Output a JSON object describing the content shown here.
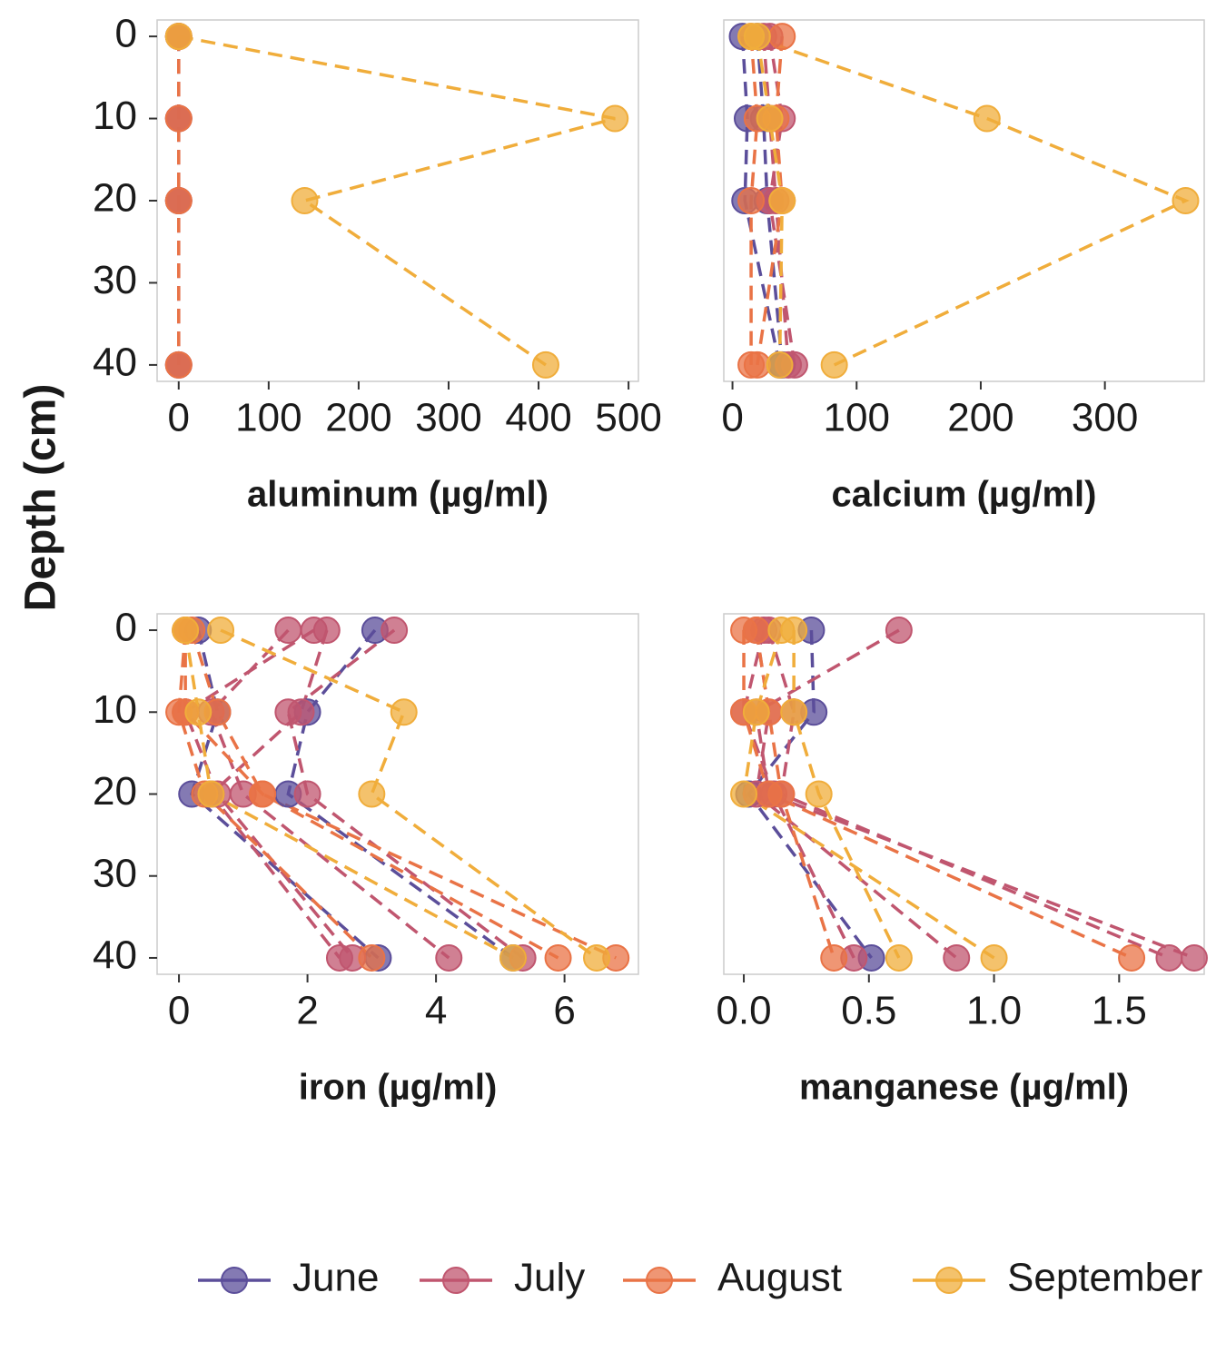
{
  "ylabel": "Depth (cm)",
  "chart_data": [
    {
      "type": "profile",
      "xlabel": "aluminum (µg/ml)",
      "xlim": [
        -24,
        511
      ],
      "xticks": [
        0,
        100,
        200,
        300,
        400,
        500
      ],
      "ylim": [
        -2,
        42
      ],
      "yticks": [
        0,
        10,
        20,
        30,
        40
      ],
      "y_reversed": true,
      "series": [
        {
          "name": "June",
          "color": "#5b4e9a",
          "x": [
            0,
            0,
            0,
            0
          ],
          "values": [
            0,
            10,
            20,
            40
          ]
        },
        {
          "name": "July",
          "color": "#c0566f",
          "x": [
            0,
            0,
            0,
            0
          ],
          "values": [
            0,
            10,
            20,
            40
          ]
        },
        {
          "name": "August",
          "color": "#e97346",
          "x": [
            0,
            0,
            0,
            0
          ],
          "values": [
            0,
            10,
            20,
            40
          ]
        },
        {
          "name": "September",
          "color": "#f0ad3b",
          "x": [
            0,
            485,
            140,
            408
          ],
          "values": [
            0,
            10,
            20,
            40
          ]
        }
      ]
    },
    {
      "type": "profile",
      "xlabel": "calcium (µg/ml)",
      "xlim": [
        -7,
        380
      ],
      "xticks": [
        0,
        100,
        200,
        300
      ],
      "ylim": [
        -2,
        42
      ],
      "y_reversed": true,
      "series": [
        {
          "name": "June",
          "color": "#5b4e9a",
          "x": [
            8,
            12,
            10,
            38
          ],
          "values": [
            0,
            10,
            20,
            40
          ]
        },
        {
          "name": "June",
          "color": "#5b4e9a",
          "x": [
            20,
            25,
            28,
            40
          ],
          "values": [
            0,
            10,
            20,
            40
          ]
        },
        {
          "name": "July",
          "color": "#c0566f",
          "x": [
            30,
            40,
            30,
            50
          ],
          "values": [
            0,
            10,
            20,
            40
          ]
        },
        {
          "name": "July",
          "color": "#c0566f",
          "x": [
            25,
            30,
            35,
            45
          ],
          "values": [
            0,
            10,
            20,
            40
          ]
        },
        {
          "name": "August",
          "color": "#e97346",
          "x": [
            40,
            35,
            40,
            20
          ],
          "values": [
            0,
            10,
            20,
            40
          ]
        },
        {
          "name": "August",
          "color": "#e97346",
          "x": [
            15,
            20,
            15,
            15
          ],
          "values": [
            0,
            10,
            20,
            40
          ]
        },
        {
          "name": "September",
          "color": "#f0ad3b",
          "x": [
            15,
            205,
            365,
            82
          ],
          "values": [
            0,
            10,
            20,
            40
          ]
        },
        {
          "name": "September",
          "color": "#f0ad3b",
          "x": [
            20,
            30,
            40,
            38
          ],
          "values": [
            0,
            10,
            20,
            40
          ]
        }
      ]
    },
    {
      "type": "profile",
      "xlabel": "iron (µg/ml)",
      "xlim": [
        -0.34,
        7.15
      ],
      "xticks": [
        0,
        2,
        4,
        6
      ],
      "ylim": [
        -2,
        42
      ],
      "yticks": [
        0,
        10,
        20,
        30,
        40
      ],
      "y_reversed": true,
      "series": [
        {
          "name": "June",
          "color": "#5b4e9a",
          "x": [
            3.05,
            2.0,
            1.7,
            5.2
          ],
          "values": [
            0,
            10,
            20,
            40
          ]
        },
        {
          "name": "June",
          "color": "#5b4e9a",
          "x": [
            0.3,
            0.6,
            0.2,
            3.1
          ],
          "values": [
            0,
            10,
            20,
            40
          ]
        },
        {
          "name": "July",
          "color": "#c0566f",
          "x": [
            3.35,
            1.7,
            2.0,
            5.35
          ],
          "values": [
            0,
            10,
            20,
            40
          ]
        },
        {
          "name": "July",
          "color": "#c0566f",
          "x": [
            2.3,
            1.9,
            0.5,
            2.5
          ],
          "values": [
            0,
            10,
            20,
            40
          ]
        },
        {
          "name": "July",
          "color": "#c0566f",
          "x": [
            1.7,
            0.5,
            1.0,
            4.2
          ],
          "values": [
            0,
            10,
            20,
            40
          ]
        },
        {
          "name": "July",
          "color": "#c0566f",
          "x": [
            2.1,
            0.1,
            0.6,
            2.7
          ],
          "values": [
            0,
            10,
            20,
            40
          ]
        },
        {
          "name": "August",
          "color": "#e97346",
          "x": [
            0.1,
            0.1,
            1.3,
            5.9
          ],
          "values": [
            0,
            10,
            20,
            40
          ]
        },
        {
          "name": "August",
          "color": "#e97346",
          "x": [
            0.2,
            0.6,
            1.3,
            6.8
          ],
          "values": [
            0,
            10,
            20,
            40
          ]
        },
        {
          "name": "August",
          "color": "#e97346",
          "x": [
            0.1,
            0.0,
            0.4,
            3.0
          ],
          "values": [
            0,
            10,
            20,
            40
          ]
        },
        {
          "name": "September",
          "color": "#f0ad3b",
          "x": [
            0.65,
            3.5,
            3.0,
            6.5
          ],
          "values": [
            0,
            10,
            20,
            40
          ]
        },
        {
          "name": "September",
          "color": "#f0ad3b",
          "x": [
            0.1,
            0.3,
            0.5,
            5.2
          ],
          "values": [
            0,
            10,
            20,
            40
          ]
        }
      ]
    },
    {
      "type": "profile",
      "xlabel": "manganese (µg/ml)",
      "xlim": [
        -0.08,
        1.84
      ],
      "xticks": [
        {
          "value": 0,
          "label": "0.0"
        },
        0.5,
        {
          "value": 1,
          "label": "1.0"
        },
        1.5
      ],
      "ylim": [
        -2,
        42
      ],
      "y_reversed": true,
      "series": [
        {
          "name": "June",
          "color": "#5b4e9a",
          "x": [
            0.27,
            0.28,
            0.02,
            0.51
          ],
          "values": [
            0,
            10,
            20,
            40
          ]
        },
        {
          "name": "July",
          "color": "#c0566f",
          "x": [
            0.62,
            0.05,
            0.1,
            1.8
          ],
          "values": [
            0,
            10,
            20,
            40
          ]
        },
        {
          "name": "July",
          "color": "#c0566f",
          "x": [
            0.1,
            0.2,
            0.15,
            1.7
          ],
          "values": [
            0,
            10,
            20,
            40
          ]
        },
        {
          "name": "July",
          "color": "#c0566f",
          "x": [
            0.05,
            0.1,
            0.05,
            0.85
          ],
          "values": [
            0,
            10,
            20,
            40
          ]
        },
        {
          "name": "July",
          "color": "#c0566f",
          "x": [
            0.08,
            0.0,
            0.12,
            0.44
          ],
          "values": [
            0,
            10,
            20,
            40
          ]
        },
        {
          "name": "August",
          "color": "#e97346",
          "x": [
            0.0,
            0.0,
            0.1,
            1.55
          ],
          "values": [
            0,
            10,
            20,
            40
          ]
        },
        {
          "name": "August",
          "color": "#e97346",
          "x": [
            0.05,
            0.1,
            0.15,
            0.36
          ],
          "values": [
            0,
            10,
            20,
            40
          ]
        },
        {
          "name": "September",
          "color": "#f0ad3b",
          "x": [
            0.2,
            0.2,
            0.3,
            0.62
          ],
          "values": [
            0,
            10,
            20,
            40
          ]
        },
        {
          "name": "September",
          "color": "#f0ad3b",
          "x": [
            0.15,
            0.05,
            0.0,
            1.0
          ],
          "values": [
            0,
            10,
            20,
            40
          ]
        }
      ]
    }
  ]
}
